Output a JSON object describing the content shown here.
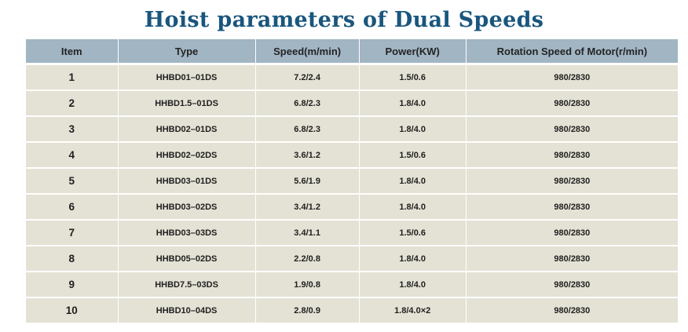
{
  "page": {
    "title": "Hoist parameters of Dual Speeds"
  },
  "colors": {
    "title_text": "#1a567d",
    "header_bg": "#a1b5c3",
    "row_bg": "#e4e2d5",
    "grid_lines": "#ffffff",
    "cell_text": "#1f1f1f"
  },
  "table": {
    "headers": [
      "Item",
      "Type",
      "Speed(m/min)",
      "Power(KW)",
      "Rotation Speed of Motor(r/min)"
    ],
    "rows": [
      {
        "item": "1",
        "type": "HHBD01–01DS",
        "speed": "7.2/2.4",
        "power": "1.5/0.6",
        "rotation": "980/2830"
      },
      {
        "item": "2",
        "type": "HHBD1.5–01DS",
        "speed": "6.8/2.3",
        "power": "1.8/4.0",
        "rotation": "980/2830"
      },
      {
        "item": "3",
        "type": "HHBD02–01DS",
        "speed": "6.8/2.3",
        "power": "1.8/4.0",
        "rotation": "980/2830"
      },
      {
        "item": "4",
        "type": "HHBD02–02DS",
        "speed": "3.6/1.2",
        "power": "1.5/0.6",
        "rotation": "980/2830"
      },
      {
        "item": "5",
        "type": "HHBD03–01DS",
        "speed": "5.6/1.9",
        "power": "1.8/4.0",
        "rotation": "980/2830"
      },
      {
        "item": "6",
        "type": "HHBD03–02DS",
        "speed": "3.4/1.2",
        "power": "1.8/4.0",
        "rotation": "980/2830"
      },
      {
        "item": "7",
        "type": "HHBD03–03DS",
        "speed": "3.4/1.1",
        "power": "1.5/0.6",
        "rotation": "980/2830"
      },
      {
        "item": "8",
        "type": "HHBD05–02DS",
        "speed": "2.2/0.8",
        "power": "1.8/4.0",
        "rotation": "980/2830"
      },
      {
        "item": "9",
        "type": "HHBD7.5–03DS",
        "speed": "1.9/0.8",
        "power": "1.8/4.0",
        "rotation": "980/2830"
      },
      {
        "item": "10",
        "type": "HHBD10–04DS",
        "speed": "2.8/0.9",
        "power": "1.8/4.0×2",
        "rotation": "980/2830"
      }
    ]
  }
}
